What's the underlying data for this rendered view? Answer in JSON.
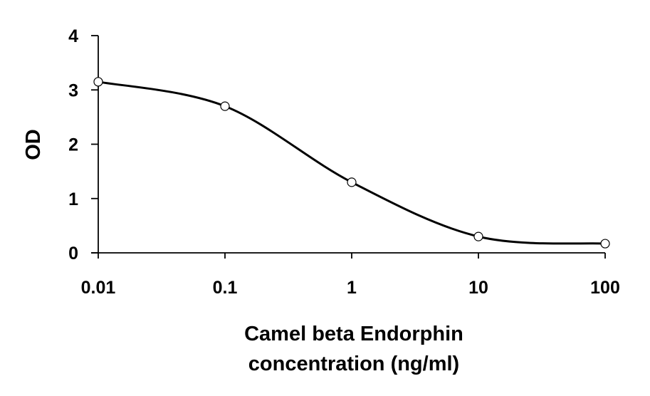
{
  "chart_data": {
    "type": "line",
    "title": "",
    "xlabel_lines": [
      "Camel beta Endorphin",
      "concentration (ng/ml)"
    ],
    "ylabel": "OD",
    "xscale": "log",
    "xlim": [
      0.01,
      100
    ],
    "ylim": [
      0,
      4
    ],
    "xticks": [
      0.01,
      0.1,
      1,
      10,
      100
    ],
    "xtick_labels": [
      "0.01",
      "0.1",
      "1",
      "10",
      "100"
    ],
    "yticks": [
      0,
      1,
      2,
      3,
      4
    ],
    "ytick_labels": [
      "0",
      "1",
      "2",
      "3",
      "4"
    ],
    "grid": false,
    "legend": "none",
    "series": [
      {
        "x": [
          0.01,
          0.1,
          1,
          10,
          100
        ],
        "y": [
          3.15,
          2.7,
          1.3,
          0.3,
          0.17
        ],
        "line_color": "#000000",
        "marker": "open-circle",
        "smooth": true
      }
    ]
  }
}
